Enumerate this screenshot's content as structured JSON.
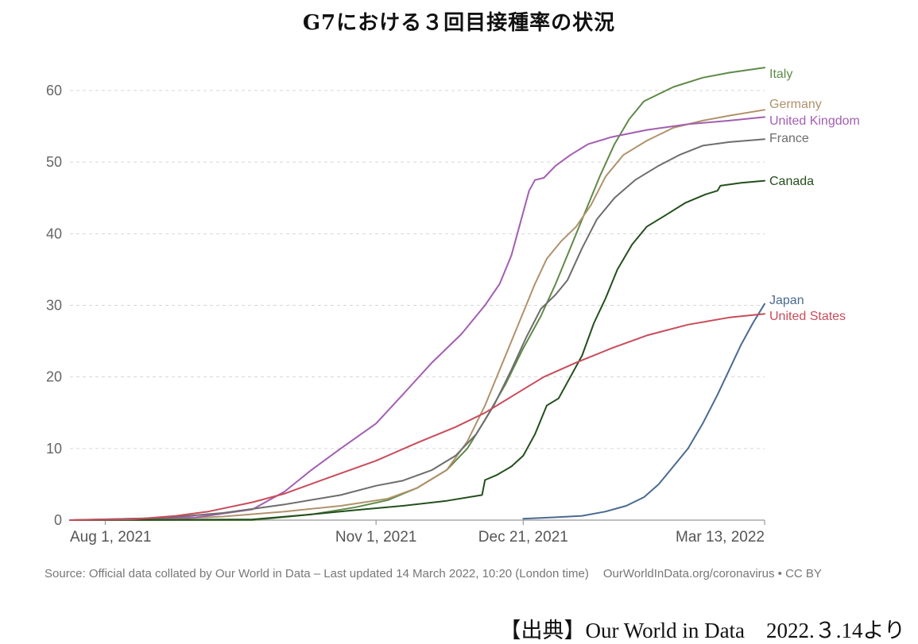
{
  "title": "G7における３回目接種率の状況",
  "source": {
    "left": "Source: Official data collated by Our World in Data – Last updated 14 March 2022, 10:20 (London time)",
    "right": "OurWorldInData.org/coronavirus • CC BY"
  },
  "credit": "【出典】Our World in Data　2022.３.14より",
  "chart_data": {
    "type": "line",
    "title": "G7における３回目接種率の状況",
    "xlabel": "",
    "ylabel": "",
    "x_range": [
      "2021-07-20",
      "2022-03-13"
    ],
    "ylim": [
      0,
      65
    ],
    "yticks": [
      0,
      10,
      20,
      30,
      40,
      50,
      60
    ],
    "xticks": [
      {
        "date": "2021-08-01",
        "label": "Aug 1, 2021"
      },
      {
        "date": "2021-11-01",
        "label": "Nov 1, 2021"
      },
      {
        "date": "2021-12-21",
        "label": "Dec 21, 2021"
      },
      {
        "date": "2022-03-13",
        "label": "Mar 13, 2022"
      }
    ],
    "grid": "horizontal dashed",
    "series": [
      {
        "name": "Italy",
        "color": "#5f8a48",
        "points": [
          [
            "2021-07-20",
            0
          ],
          [
            "2021-09-20",
            0
          ],
          [
            "2021-10-10",
            0.8
          ],
          [
            "2021-10-25",
            1.8
          ],
          [
            "2021-11-05",
            2.8
          ],
          [
            "2021-11-15",
            4.5
          ],
          [
            "2021-11-25",
            7
          ],
          [
            "2021-12-02",
            10
          ],
          [
            "2021-12-08",
            14
          ],
          [
            "2021-12-15",
            19
          ],
          [
            "2021-12-21",
            24
          ],
          [
            "2021-12-27",
            28.5
          ],
          [
            "2022-01-01",
            33
          ],
          [
            "2022-01-06",
            38
          ],
          [
            "2022-01-11",
            43
          ],
          [
            "2022-01-16",
            48
          ],
          [
            "2022-01-21",
            52.5
          ],
          [
            "2022-01-26",
            56
          ],
          [
            "2022-01-31",
            58.5
          ],
          [
            "2022-02-10",
            60.5
          ],
          [
            "2022-02-20",
            61.8
          ],
          [
            "2022-03-01",
            62.5
          ],
          [
            "2022-03-13",
            63.2
          ]
        ]
      },
      {
        "name": "Germany",
        "color": "#b0926b",
        "points": [
          [
            "2021-07-20",
            0
          ],
          [
            "2021-08-20",
            0.1
          ],
          [
            "2021-09-10",
            0.5
          ],
          [
            "2021-10-01",
            1.2
          ],
          [
            "2021-10-20",
            2
          ],
          [
            "2021-11-05",
            3
          ],
          [
            "2021-11-15",
            4.5
          ],
          [
            "2021-11-25",
            7
          ],
          [
            "2021-12-02",
            11
          ],
          [
            "2021-12-08",
            16
          ],
          [
            "2021-12-15",
            23
          ],
          [
            "2021-12-20",
            28
          ],
          [
            "2021-12-25",
            33
          ],
          [
            "2021-12-29",
            36.5
          ],
          [
            "2022-01-03",
            39
          ],
          [
            "2022-01-08",
            41
          ],
          [
            "2022-01-13",
            44
          ],
          [
            "2022-01-18",
            48
          ],
          [
            "2022-01-24",
            51
          ],
          [
            "2022-02-01",
            53
          ],
          [
            "2022-02-10",
            54.8
          ],
          [
            "2022-02-20",
            55.8
          ],
          [
            "2022-03-01",
            56.5
          ],
          [
            "2022-03-13",
            57.3
          ]
        ]
      },
      {
        "name": "United Kingdom",
        "color": "#a35eb2",
        "points": [
          [
            "2021-07-20",
            0
          ],
          [
            "2021-09-01",
            0.4
          ],
          [
            "2021-09-20",
            1.5
          ],
          [
            "2021-10-01",
            4
          ],
          [
            "2021-10-10",
            7
          ],
          [
            "2021-10-20",
            10
          ],
          [
            "2021-11-01",
            13.5
          ],
          [
            "2021-11-10",
            17.5
          ],
          [
            "2021-11-20",
            22
          ],
          [
            "2021-11-30",
            26
          ],
          [
            "2021-12-08",
            30
          ],
          [
            "2021-12-13",
            33
          ],
          [
            "2021-12-17",
            37
          ],
          [
            "2021-12-20",
            41.5
          ],
          [
            "2021-12-23",
            46
          ],
          [
            "2021-12-25",
            47.5
          ],
          [
            "2021-12-28",
            47.8
          ],
          [
            "2022-01-01",
            49.5
          ],
          [
            "2022-01-06",
            51
          ],
          [
            "2022-01-12",
            52.5
          ],
          [
            "2022-01-20",
            53.5
          ],
          [
            "2022-02-01",
            54.5
          ],
          [
            "2022-02-15",
            55.3
          ],
          [
            "2022-03-01",
            55.8
          ],
          [
            "2022-03-13",
            56.3
          ]
        ]
      },
      {
        "name": "France",
        "color": "#6e6d6d",
        "points": [
          [
            "2021-07-20",
            0
          ],
          [
            "2021-08-20",
            0.3
          ],
          [
            "2021-09-10",
            1
          ],
          [
            "2021-10-01",
            2.2
          ],
          [
            "2021-10-20",
            3.5
          ],
          [
            "2021-11-01",
            4.8
          ],
          [
            "2021-11-10",
            5.5
          ],
          [
            "2021-11-20",
            7
          ],
          [
            "2021-11-28",
            9
          ],
          [
            "2021-12-05",
            12
          ],
          [
            "2021-12-11",
            16
          ],
          [
            "2021-12-17",
            21
          ],
          [
            "2021-12-22",
            25.5
          ],
          [
            "2021-12-27",
            29.5
          ],
          [
            "2022-01-01",
            31.5
          ],
          [
            "2022-01-05",
            33.5
          ],
          [
            "2022-01-10",
            38
          ],
          [
            "2022-01-15",
            42
          ],
          [
            "2022-01-21",
            45
          ],
          [
            "2022-01-28",
            47.5
          ],
          [
            "2022-02-05",
            49.5
          ],
          [
            "2022-02-12",
            51
          ],
          [
            "2022-02-20",
            52.3
          ],
          [
            "2022-03-01",
            52.8
          ],
          [
            "2022-03-13",
            53.2
          ]
        ]
      },
      {
        "name": "Canada",
        "color": "#234f1c",
        "points": [
          [
            "2021-07-20",
            0
          ],
          [
            "2021-09-20",
            0.1
          ],
          [
            "2021-10-10",
            0.8
          ],
          [
            "2021-10-25",
            1.4
          ],
          [
            "2021-11-10",
            2
          ],
          [
            "2021-11-25",
            2.7
          ],
          [
            "2021-12-07",
            3.5
          ],
          [
            "2021-12-08",
            5.6
          ],
          [
            "2021-12-12",
            6.3
          ],
          [
            "2021-12-17",
            7.5
          ],
          [
            "2021-12-21",
            9
          ],
          [
            "2021-12-25",
            12
          ],
          [
            "2021-12-29",
            16
          ],
          [
            "2022-01-02",
            17
          ],
          [
            "2022-01-06",
            20
          ],
          [
            "2022-01-10",
            23
          ],
          [
            "2022-01-14",
            27.5
          ],
          [
            "2022-01-18",
            31
          ],
          [
            "2022-01-22",
            35
          ],
          [
            "2022-01-27",
            38.5
          ],
          [
            "2022-02-01",
            41
          ],
          [
            "2022-02-07",
            42.5
          ],
          [
            "2022-02-14",
            44.3
          ],
          [
            "2022-02-21",
            45.5
          ],
          [
            "2022-02-25",
            46
          ],
          [
            "2022-02-26",
            46.7
          ],
          [
            "2022-03-05",
            47.1
          ],
          [
            "2022-03-13",
            47.4
          ]
        ]
      },
      {
        "name": "Japan",
        "color": "#4a6a91",
        "points": [
          [
            "2021-12-21",
            0.2
          ],
          [
            "2022-01-01",
            0.4
          ],
          [
            "2022-01-10",
            0.6
          ],
          [
            "2022-01-18",
            1.2
          ],
          [
            "2022-01-25",
            2
          ],
          [
            "2022-01-31",
            3.2
          ],
          [
            "2022-02-05",
            5
          ],
          [
            "2022-02-10",
            7.5
          ],
          [
            "2022-02-15",
            10
          ],
          [
            "2022-02-20",
            13.5
          ],
          [
            "2022-02-25",
            17.5
          ],
          [
            "2022-03-01",
            21
          ],
          [
            "2022-03-05",
            24.5
          ],
          [
            "2022-03-09",
            27.5
          ],
          [
            "2022-03-13",
            30.2
          ]
        ]
      },
      {
        "name": "United States",
        "color": "#c94c5a",
        "points": [
          [
            "2021-07-20",
            0
          ],
          [
            "2021-08-10",
            0.1
          ],
          [
            "2021-08-25",
            0.6
          ],
          [
            "2021-09-05",
            1.2
          ],
          [
            "2021-09-20",
            2.5
          ],
          [
            "2021-10-01",
            3.7
          ],
          [
            "2021-10-15",
            5.8
          ],
          [
            "2021-11-01",
            8.3
          ],
          [
            "2021-11-15",
            10.8
          ],
          [
            "2021-11-28",
            13
          ],
          [
            "2021-12-08",
            15
          ],
          [
            "2021-12-18",
            17.5
          ],
          [
            "2021-12-28",
            20
          ],
          [
            "2022-01-08",
            22
          ],
          [
            "2022-01-20",
            24
          ],
          [
            "2022-02-01",
            25.8
          ],
          [
            "2022-02-15",
            27.3
          ],
          [
            "2022-03-01",
            28.3
          ],
          [
            "2022-03-13",
            28.8
          ]
        ]
      }
    ]
  }
}
